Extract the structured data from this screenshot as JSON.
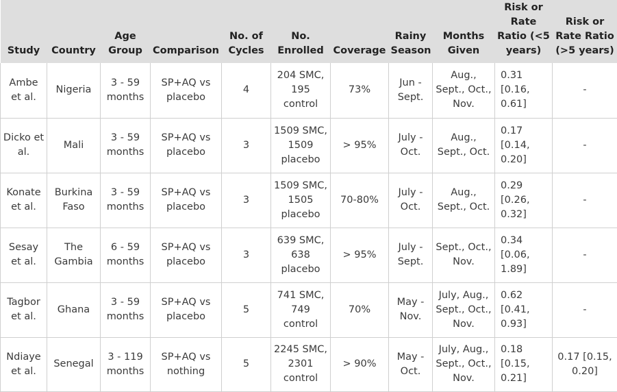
{
  "headers": {
    "study": "Study",
    "country": "Country",
    "age_group": "Age Group",
    "comparison": "Comparison",
    "cycles": "No. of Cycles",
    "enrolled": "No. Enrolled",
    "coverage": "Coverage",
    "rainy_season": "Rainy Season",
    "months_given": "Months Given",
    "rr_under5": "Risk or Rate Ratio (<5 years)",
    "rr_over5": "Risk or Rate Ratio (>5 years)"
  },
  "rows": [
    {
      "study": "Ambe et al.",
      "country": "Nigeria",
      "age_group": "3 - 59 months",
      "comparison": "SP+AQ vs placebo",
      "cycles": "4",
      "enrolled": "204 SMC, 195 control",
      "coverage": "73%",
      "rainy_season": "Jun - Sept.",
      "months_given": "Aug., Sept., Oct., Nov.",
      "rr_under5": "0.31 [0.16, 0.61]",
      "rr_over5": "-"
    },
    {
      "study": "Dicko et al.",
      "country": "Mali",
      "age_group": "3 - 59 months",
      "comparison": "SP+AQ vs placebo",
      "cycles": "3",
      "enrolled": "1509 SMC, 1509 placebo",
      "coverage": "> 95%",
      "rainy_season": "July - Oct.",
      "months_given": "Aug., Sept., Oct.",
      "rr_under5": "0.17 [0.14, 0.20]",
      "rr_over5": "-"
    },
    {
      "study": "Konate et al.",
      "country": "Burkina Faso",
      "age_group": "3 - 59 months",
      "comparison": "SP+AQ vs placebo",
      "cycles": "3",
      "enrolled": "1509 SMC, 1505 placebo",
      "coverage": "70-80%",
      "rainy_season": "July - Oct.",
      "months_given": "Aug., Sept., Oct.",
      "rr_under5": "0.29 [0.26, 0.32]",
      "rr_over5": "-"
    },
    {
      "study": "Sesay et al.",
      "country": "The Gambia",
      "age_group": "6 - 59 months",
      "comparison": "SP+AQ vs placebo",
      "cycles": "3",
      "enrolled": "639 SMC, 638 placebo",
      "coverage": "> 95%",
      "rainy_season": "July - Sept.",
      "months_given": "Sept., Oct., Nov.",
      "rr_under5": "0.34 [0.06, 1.89]",
      "rr_over5": "-"
    },
    {
      "study": "Tagbor et al.",
      "country": "Ghana",
      "age_group": "3 - 59 months",
      "comparison": "SP+AQ vs placebo",
      "cycles": "5",
      "enrolled": "741 SMC, 749 control",
      "coverage": "70%",
      "rainy_season": "May - Nov.",
      "months_given": "July, Aug., Sept., Oct., Nov.",
      "rr_under5": "0.62 [0.41, 0.93]",
      "rr_over5": "-"
    },
    {
      "study": "Ndiaye et al.",
      "country": "Senegal",
      "age_group": "3 - 119 months",
      "comparison": "SP+AQ vs nothing",
      "cycles": "5",
      "enrolled": "2245 SMC, 2301 control",
      "coverage": "> 90%",
      "rainy_season": "May - Oct.",
      "months_given": "July, Aug., Sept., Oct., Nov.",
      "rr_under5": "0.18 [0.15, 0.21]",
      "rr_over5": "0.17 [0.15, 0.20]"
    }
  ]
}
